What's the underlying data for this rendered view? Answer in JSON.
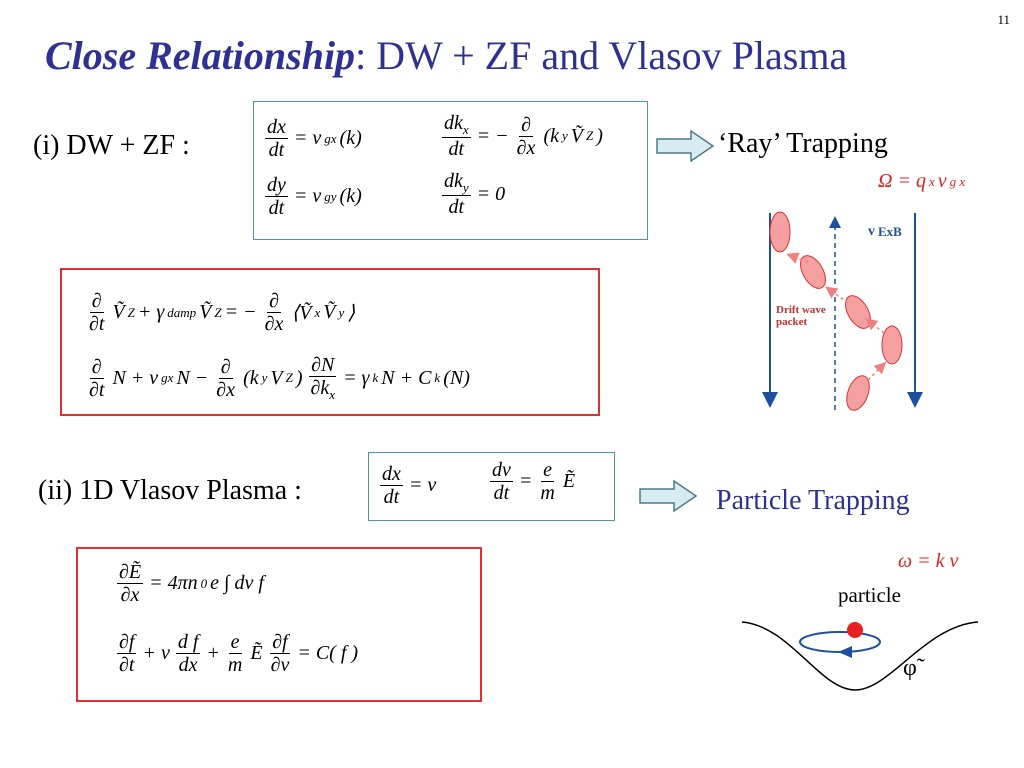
{
  "page_number": "11",
  "title": {
    "emphasis": "Close Relationship",
    "rest": ": DW + ZF and Vlasov Plasma"
  },
  "dw_zf": {
    "label": "(i) DW + ZF :",
    "equations": [
      [
        {
          "n": [
            "dx"
          ],
          "d": [
            "dt"
          ]
        },
        "= v",
        {
          "sub": "gx"
        },
        "(k)"
      ],
      [
        {
          "n": [
            "dk",
            {
              "sub": "x"
            }
          ],
          "d": [
            "dt"
          ]
        },
        "= −",
        {
          "n": [
            "∂"
          ],
          "d": [
            "∂x"
          ]
        },
        "(k",
        {
          "sub": "y"
        },
        "Ṽ",
        {
          "sub": "Z"
        },
        ")"
      ],
      [
        {
          "n": [
            "dy"
          ],
          "d": [
            "dt"
          ]
        },
        "= v",
        {
          "sub": "gy"
        },
        "(k)"
      ],
      [
        {
          "n": [
            "dk",
            {
              "sub": "y"
            }
          ],
          "d": [
            "dt"
          ]
        },
        "= 0"
      ]
    ],
    "result": "‘Ray’ Trapping",
    "frequency": [
      "Ω = q",
      {
        "sub": "x"
      },
      "v",
      {
        "sub": "g x"
      }
    ],
    "velocity_label": [
      "v",
      {
        "sub": "ExB"
      }
    ],
    "packet_label": "Drift wave packet"
  },
  "zonal_flow": {
    "equations": [
      [
        {
          "n": [
            "∂"
          ],
          "d": [
            "∂t"
          ]
        },
        "Ṽ",
        {
          "sub": "Z"
        },
        "+ γ",
        {
          "sub": "damp"
        },
        "Ṽ",
        {
          "sub": "Z"
        },
        "= −",
        {
          "n": [
            "∂"
          ],
          "d": [
            "∂x"
          ]
        },
        "⟨Ṽ",
        {
          "sub": "x"
        },
        "Ṽ",
        {
          "sub": "y"
        },
        "⟩"
      ],
      [
        {
          "n": [
            "∂"
          ],
          "d": [
            "∂t"
          ]
        },
        "N + v",
        {
          "sub": "gx"
        },
        "N −",
        {
          "n": [
            "∂"
          ],
          "d": [
            "∂x"
          ]
        },
        "(k",
        {
          "sub": "y"
        },
        "V",
        {
          "sub": "Z"
        },
        ")",
        {
          "n": [
            "∂N"
          ],
          "d": [
            "∂k",
            {
              "sub": "x"
            }
          ]
        },
        "= γ",
        {
          "sub": "k"
        },
        "N + C",
        {
          "sub": "k"
        },
        "(N)"
      ]
    ]
  },
  "vlasov": {
    "label": "(ii) 1D Vlasov Plasma :",
    "equations": [
      [
        {
          "n": [
            "dx"
          ],
          "d": [
            "dt"
          ]
        },
        "= v"
      ],
      [
        {
          "n": [
            "dv"
          ],
          "d": [
            "dt"
          ]
        },
        "=",
        {
          "n": [
            "e"
          ],
          "d": [
            "m"
          ]
        },
        "Ẽ"
      ]
    ],
    "result": "Particle Trapping",
    "frequency": "ω = k v",
    "particle_label": "particle",
    "potential_label": "φ̃"
  },
  "poisson": {
    "equations": [
      [
        {
          "n": [
            "∂Ẽ"
          ],
          "d": [
            "∂x"
          ]
        },
        "= 4πn",
        {
          "sub": "0"
        },
        "e ∫ dv  f"
      ],
      [
        {
          "n": [
            "∂f"
          ],
          "d": [
            "∂t"
          ]
        },
        "+ v",
        {
          "n": [
            "d f"
          ],
          "d": [
            "dx"
          ]
        },
        "+",
        {
          "n": [
            "e"
          ],
          "d": [
            "m"
          ]
        },
        "Ẽ",
        {
          "n": [
            "∂f"
          ],
          "d": [
            "∂v"
          ]
        },
        "= C( f )"
      ]
    ]
  }
}
